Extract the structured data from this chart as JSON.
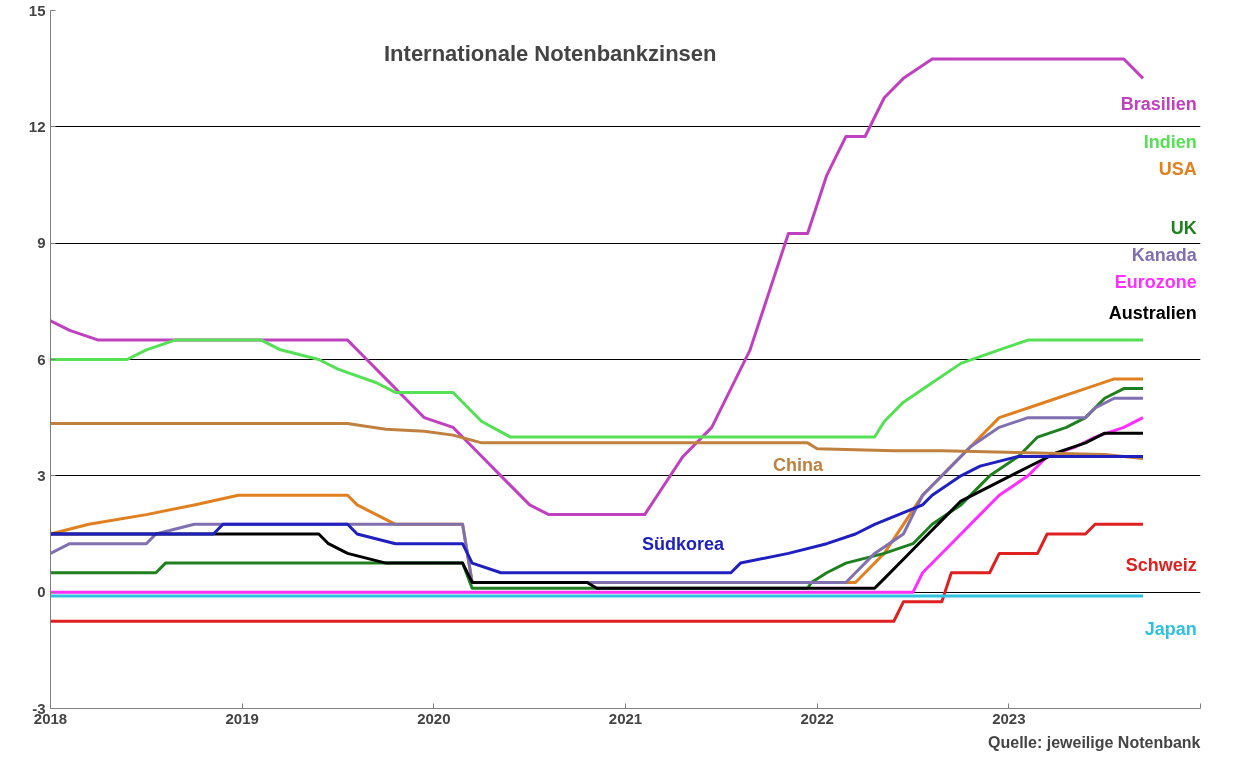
{
  "chart_data": {
    "type": "line",
    "title": "Internationale Notenbankzinsen",
    "annotations": [
      "Quelle: jeweilige Notenbank"
    ],
    "xlim": [
      2018,
      2024
    ],
    "xticks": [
      2018,
      2019,
      2020,
      2021,
      2022,
      2023,
      {
        "value": 2024,
        "label": null
      }
    ],
    "ylim": [
      -3,
      15
    ],
    "yticks": [
      -3,
      0,
      3,
      6,
      9,
      12,
      15
    ],
    "grid": "y",
    "marker": "none",
    "line_style": "solid",
    "series": [
      {
        "name": "Brasilien",
        "color": "#c040c0",
        "x": [
          2018,
          2018.1,
          2018.25,
          2019.55,
          2019.65,
          2019.75,
          2019.85,
          2019.95,
          2020.1,
          2020.2,
          2020.35,
          2020.5,
          2020.6,
          2021.1,
          2021.2,
          2021.3,
          2021.45,
          2021.55,
          2021.65,
          2021.75,
          2021.85,
          2021.95,
          2022.05,
          2022.15,
          2022.25,
          2022.35,
          2022.45,
          2022.6,
          2023.6,
          2023.7
        ],
        "values": [
          7.0,
          6.75,
          6.5,
          6.5,
          6.0,
          5.5,
          5.0,
          4.5,
          4.25,
          3.75,
          3.0,
          2.25,
          2.0,
          2.0,
          2.75,
          3.5,
          4.25,
          5.25,
          6.25,
          7.75,
          9.25,
          9.25,
          10.75,
          11.75,
          11.75,
          12.75,
          13.25,
          13.75,
          13.75,
          13.25
        ]
      },
      {
        "name": "Indien",
        "color": "#55e055",
        "x": [
          2018,
          2018.4,
          2018.5,
          2018.65,
          2019.1,
          2019.2,
          2019.4,
          2019.5,
          2019.7,
          2019.8,
          2020.1,
          2020.25,
          2020.4,
          2022.3,
          2022.35,
          2022.45,
          2022.6,
          2022.75,
          2022.95,
          2023.1,
          2023.7
        ],
        "values": [
          6.0,
          6.0,
          6.25,
          6.5,
          6.5,
          6.25,
          6.0,
          5.75,
          5.4,
          5.15,
          5.15,
          4.4,
          4.0,
          4.0,
          4.4,
          4.9,
          5.4,
          5.9,
          6.25,
          6.5,
          6.5
        ]
      },
      {
        "name": "USA",
        "color": "#e08020",
        "x": [
          2018,
          2018.2,
          2018.5,
          2018.75,
          2018.98,
          2019.55,
          2019.6,
          2019.7,
          2019.8,
          2020.15,
          2020.2,
          2022.2,
          2022.25,
          2022.35,
          2022.45,
          2022.55,
          2022.7,
          2022.85,
          2022.95,
          2023.1,
          2023.25,
          2023.4,
          2023.55,
          2023.7
        ],
        "values": [
          1.5,
          1.75,
          2.0,
          2.25,
          2.5,
          2.5,
          2.25,
          2.0,
          1.75,
          1.75,
          0.25,
          0.25,
          0.5,
          1.0,
          1.75,
          2.5,
          3.25,
          4.0,
          4.5,
          4.75,
          5.0,
          5.25,
          5.5,
          5.5
        ]
      },
      {
        "name": "UK",
        "color": "#208020",
        "x": [
          2018,
          2018.55,
          2018.6,
          2020.15,
          2020.2,
          2021.95,
          2021.97,
          2022.05,
          2022.15,
          2022.35,
          2022.5,
          2022.6,
          2022.75,
          2022.9,
          2023.05,
          2023.15,
          2023.3,
          2023.4,
          2023.5,
          2023.6,
          2023.7
        ],
        "values": [
          0.5,
          0.5,
          0.75,
          0.75,
          0.1,
          0.1,
          0.25,
          0.5,
          0.75,
          1.0,
          1.25,
          1.75,
          2.25,
          3.0,
          3.5,
          4.0,
          4.25,
          4.5,
          5.0,
          5.25,
          5.25
        ]
      },
      {
        "name": "Kanada",
        "color": "#8070b0",
        "x": [
          2018,
          2018.1,
          2018.5,
          2018.55,
          2018.75,
          2020.15,
          2020.2,
          2022.15,
          2022.2,
          2022.3,
          2022.45,
          2022.55,
          2022.7,
          2022.8,
          2022.95,
          2023.1,
          2023.4,
          2023.45,
          2023.55,
          2023.7
        ],
        "values": [
          1.0,
          1.25,
          1.25,
          1.5,
          1.75,
          1.75,
          0.25,
          0.25,
          0.5,
          1.0,
          1.5,
          2.5,
          3.25,
          3.75,
          4.25,
          4.5,
          4.5,
          4.75,
          5.0,
          5.0
        ]
      },
      {
        "name": "Eurozone",
        "color": "#ff30ff",
        "x": [
          2018,
          2022.5,
          2022.55,
          2022.7,
          2022.85,
          2022.95,
          2023.1,
          2023.2,
          2023.35,
          2023.45,
          2023.6,
          2023.7
        ],
        "values": [
          0.0,
          0.0,
          0.5,
          1.25,
          2.0,
          2.5,
          3.0,
          3.5,
          3.75,
          4.0,
          4.25,
          4.5
        ]
      },
      {
        "name": "Australien",
        "color": "#000000",
        "x": [
          2018,
          2019.4,
          2019.45,
          2019.55,
          2019.75,
          2020.15,
          2020.2,
          2020.8,
          2020.85,
          2022.3,
          2022.35,
          2022.45,
          2022.55,
          2022.65,
          2022.75,
          2022.85,
          2022.95,
          2023.05,
          2023.15,
          2023.25,
          2023.4,
          2023.5,
          2023.7
        ],
        "values": [
          1.5,
          1.5,
          1.25,
          1.0,
          0.75,
          0.75,
          0.25,
          0.25,
          0.1,
          0.1,
          0.35,
          0.85,
          1.35,
          1.85,
          2.35,
          2.6,
          2.85,
          3.1,
          3.35,
          3.6,
          3.85,
          4.1,
          4.1
        ]
      },
      {
        "name": "China",
        "color": "#c08040",
        "x": [
          2018,
          2019.55,
          2019.6,
          2019.75,
          2019.95,
          2020.1,
          2020.25,
          2021.95,
          2022.0,
          2022.4,
          2022.65,
          2023.5,
          2023.7
        ],
        "values": [
          4.35,
          4.35,
          4.31,
          4.2,
          4.15,
          4.05,
          3.85,
          3.85,
          3.7,
          3.65,
          3.65,
          3.55,
          3.45
        ]
      },
      {
        "name": "Südkorea",
        "color": "#2020c0",
        "x": [
          2018,
          2018.85,
          2018.9,
          2019.55,
          2019.6,
          2019.8,
          2020.15,
          2020.2,
          2020.35,
          2021.55,
          2021.6,
          2021.85,
          2022.05,
          2022.2,
          2022.3,
          2022.55,
          2022.6,
          2022.75,
          2022.85,
          2023.05,
          2023.7
        ],
        "values": [
          1.5,
          1.5,
          1.75,
          1.75,
          1.5,
          1.25,
          1.25,
          0.75,
          0.5,
          0.5,
          0.75,
          1.0,
          1.25,
          1.5,
          1.75,
          2.25,
          2.5,
          3.0,
          3.25,
          3.5,
          3.5
        ]
      },
      {
        "name": "Schweiz",
        "color": "#e02020",
        "x": [
          2018,
          2022.4,
          2022.45,
          2022.65,
          2022.7,
          2022.9,
          2022.95,
          2023.15,
          2023.2,
          2023.4,
          2023.45,
          2023.7
        ],
        "values": [
          -0.75,
          -0.75,
          -0.25,
          -0.25,
          0.5,
          0.5,
          1.0,
          1.0,
          1.5,
          1.5,
          1.75,
          1.75
        ]
      },
      {
        "name": "Japan",
        "color": "#30c0e0",
        "x": [
          2018,
          2023.7
        ],
        "values": [
          -0.1,
          -0.1
        ]
      }
    ]
  }
}
